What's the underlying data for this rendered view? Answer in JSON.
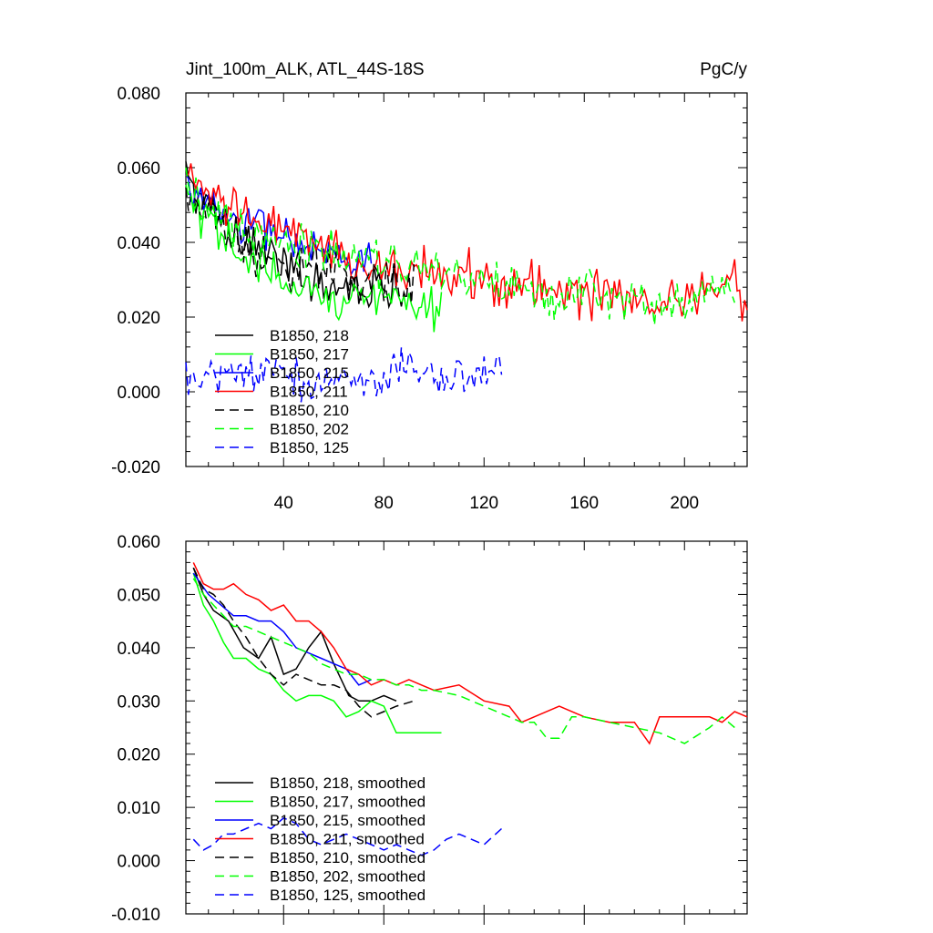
{
  "chart_data": [
    {
      "type": "line",
      "title": "Jint_100m_ALK, ATL_44S-18S",
      "units": "PgC/y",
      "xlabel": "",
      "ylabel": "",
      "xlim": [
        1,
        225
      ],
      "ylim": [
        -0.02,
        0.08
      ],
      "xticks": [
        "40",
        "80",
        "120",
        "160",
        "200"
      ],
      "yticks": [
        "-0.020",
        "0.000",
        "0.020",
        "0.040",
        "0.060",
        "0.080"
      ],
      "grid": false,
      "legend_position": "lower-left",
      "series": [
        {
          "name": "B1850, 218",
          "color": "#000000",
          "dash": "solid",
          "x_end": 85,
          "x": [
            1,
            10,
            20,
            30,
            40,
            50,
            60,
            70,
            80,
            85
          ],
          "values": [
            0.057,
            0.049,
            0.044,
            0.039,
            0.033,
            0.031,
            0.03,
            0.028,
            0.029,
            0.03
          ]
        },
        {
          "name": "B1850, 217",
          "color": "#00ff00",
          "dash": "solid",
          "x_end": 103,
          "x": [
            1,
            10,
            20,
            30,
            40,
            50,
            60,
            70,
            80,
            90,
            103
          ],
          "values": [
            0.052,
            0.044,
            0.038,
            0.034,
            0.029,
            0.027,
            0.026,
            0.026,
            0.024,
            0.022,
            0.023
          ]
        },
        {
          "name": "B1850, 215",
          "color": "#0000ff",
          "dash": "solid",
          "x_end": 75,
          "x": [
            1,
            10,
            20,
            30,
            40,
            50,
            60,
            70,
            75
          ],
          "values": [
            0.056,
            0.05,
            0.046,
            0.044,
            0.042,
            0.039,
            0.036,
            0.033,
            0.034
          ]
        },
        {
          "name": "B1850, 211",
          "color": "#ff0000",
          "dash": "solid",
          "x_end": 225,
          "x": [
            1,
            10,
            20,
            30,
            40,
            50,
            60,
            70,
            80,
            90,
            100,
            110,
            120,
            130,
            140,
            150,
            160,
            170,
            180,
            190,
            200,
            210,
            220,
            225
          ],
          "values": [
            0.057,
            0.051,
            0.05,
            0.047,
            0.043,
            0.04,
            0.037,
            0.034,
            0.033,
            0.033,
            0.032,
            0.033,
            0.03,
            0.028,
            0.029,
            0.027,
            0.026,
            0.026,
            0.022,
            0.025,
            0.026,
            0.027,
            0.03,
            0.021
          ]
        },
        {
          "name": "B1850, 210",
          "color": "#000000",
          "dash": "dashed",
          "x_end": 92,
          "x": [
            1,
            10,
            20,
            30,
            40,
            50,
            60,
            70,
            80,
            92
          ],
          "values": [
            0.055,
            0.048,
            0.041,
            0.037,
            0.034,
            0.034,
            0.033,
            0.029,
            0.029,
            0.029
          ]
        },
        {
          "name": "B1850, 202",
          "color": "#00ff00",
          "dash": "dashed",
          "x_end": 220,
          "x": [
            1,
            10,
            20,
            30,
            40,
            50,
            60,
            70,
            80,
            90,
            100,
            110,
            120,
            130,
            140,
            150,
            160,
            170,
            180,
            190,
            200,
            210,
            220
          ],
          "values": [
            0.054,
            0.047,
            0.044,
            0.041,
            0.04,
            0.038,
            0.037,
            0.035,
            0.034,
            0.033,
            0.033,
            0.031,
            0.031,
            0.027,
            0.027,
            0.023,
            0.027,
            0.025,
            0.026,
            0.023,
            0.024,
            0.027,
            0.025
          ]
        },
        {
          "name": "B1850, 125",
          "color": "#0000ff",
          "dash": "dashed",
          "x_end": 127,
          "x": [
            1,
            10,
            20,
            30,
            40,
            50,
            60,
            70,
            80,
            90,
            100,
            110,
            120,
            127
          ],
          "values": [
            0.004,
            0.003,
            0.006,
            0.005,
            0.005,
            0.002,
            0.003,
            0.004,
            0.004,
            0.007,
            0.004,
            0.004,
            0.005,
            0.006
          ]
        }
      ]
    },
    {
      "type": "line",
      "title": "",
      "xlabel": "",
      "ylabel": "",
      "xlim": [
        1,
        225
      ],
      "ylim": [
        -0.01,
        0.06
      ],
      "xticks": [],
      "yticks": [
        "-0.010",
        "0.000",
        "0.010",
        "0.020",
        "0.030",
        "0.040",
        "0.050",
        "0.060"
      ],
      "grid": false,
      "legend_position": "lower-left",
      "series": [
        {
          "name": "B1850, 218, smoothed",
          "color": "#000000",
          "dash": "solid",
          "x": [
            4,
            8,
            12,
            18,
            24,
            30,
            35,
            40,
            45,
            50,
            55,
            60,
            66,
            70,
            75,
            80,
            85
          ],
          "values": [
            0.055,
            0.05,
            0.047,
            0.045,
            0.04,
            0.038,
            0.042,
            0.035,
            0.036,
            0.04,
            0.043,
            0.037,
            0.031,
            0.03,
            0.03,
            0.031,
            0.03
          ]
        },
        {
          "name": "B1850, 217, smoothed",
          "color": "#00ff00",
          "dash": "solid",
          "x": [
            4,
            8,
            12,
            16,
            20,
            25,
            30,
            35,
            40,
            45,
            50,
            55,
            60,
            65,
            70,
            75,
            80,
            85,
            90,
            95,
            100,
            103
          ],
          "values": [
            0.054,
            0.048,
            0.045,
            0.041,
            0.038,
            0.038,
            0.036,
            0.035,
            0.032,
            0.03,
            0.031,
            0.031,
            0.03,
            0.027,
            0.028,
            0.03,
            0.029,
            0.024,
            0.024,
            0.024,
            0.024,
            0.024
          ]
        },
        {
          "name": "B1850, 215, smoothed",
          "color": "#0000ff",
          "dash": "solid",
          "x": [
            4,
            10,
            15,
            20,
            25,
            30,
            35,
            40,
            45,
            50,
            55,
            60,
            65,
            70,
            75
          ],
          "values": [
            0.054,
            0.05,
            0.048,
            0.046,
            0.046,
            0.045,
            0.045,
            0.043,
            0.04,
            0.039,
            0.038,
            0.037,
            0.036,
            0.033,
            0.034
          ]
        },
        {
          "name": "B1850, 211, smoothed",
          "color": "#ff0000",
          "dash": "solid",
          "x": [
            4,
            8,
            12,
            16,
            20,
            25,
            30,
            35,
            40,
            45,
            50,
            55,
            60,
            65,
            70,
            75,
            80,
            85,
            90,
            95,
            100,
            110,
            120,
            130,
            135,
            140,
            150,
            160,
            170,
            175,
            180,
            186,
            190,
            200,
            210,
            215,
            220,
            225
          ],
          "values": [
            0.056,
            0.052,
            0.051,
            0.051,
            0.052,
            0.05,
            0.049,
            0.047,
            0.048,
            0.045,
            0.045,
            0.043,
            0.04,
            0.036,
            0.035,
            0.033,
            0.034,
            0.033,
            0.034,
            0.033,
            0.032,
            0.033,
            0.03,
            0.029,
            0.026,
            0.027,
            0.029,
            0.027,
            0.026,
            0.026,
            0.026,
            0.022,
            0.027,
            0.027,
            0.027,
            0.026,
            0.028,
            0.027
          ]
        },
        {
          "name": "B1850, 210, smoothed",
          "color": "#000000",
          "dash": "dashed",
          "x": [
            4,
            8,
            12,
            16,
            20,
            25,
            30,
            35,
            40,
            45,
            50,
            55,
            60,
            65,
            70,
            75,
            80,
            85,
            92
          ],
          "values": [
            0.055,
            0.051,
            0.05,
            0.048,
            0.045,
            0.042,
            0.038,
            0.035,
            0.033,
            0.035,
            0.034,
            0.033,
            0.033,
            0.032,
            0.029,
            0.027,
            0.028,
            0.029,
            0.03
          ]
        },
        {
          "name": "B1850, 202, smoothed",
          "color": "#00ff00",
          "dash": "dashed",
          "x": [
            4,
            8,
            12,
            16,
            20,
            25,
            30,
            35,
            40,
            45,
            50,
            55,
            60,
            65,
            70,
            75,
            80,
            85,
            90,
            95,
            100,
            110,
            120,
            130,
            135,
            140,
            145,
            150,
            155,
            160,
            170,
            180,
            190,
            200,
            210,
            215,
            220
          ],
          "values": [
            0.053,
            0.05,
            0.048,
            0.046,
            0.044,
            0.044,
            0.043,
            0.042,
            0.041,
            0.04,
            0.039,
            0.037,
            0.036,
            0.035,
            0.035,
            0.034,
            0.034,
            0.033,
            0.033,
            0.032,
            0.032,
            0.031,
            0.029,
            0.027,
            0.026,
            0.026,
            0.023,
            0.023,
            0.027,
            0.027,
            0.026,
            0.025,
            0.024,
            0.022,
            0.025,
            0.027,
            0.025
          ]
        },
        {
          "name": "B1850, 125, smoothed",
          "color": "#0000ff",
          "dash": "dashed",
          "x": [
            4,
            8,
            12,
            16,
            20,
            25,
            30,
            35,
            40,
            45,
            50,
            55,
            60,
            65,
            70,
            75,
            80,
            85,
            90,
            95,
            100,
            105,
            110,
            115,
            120,
            127
          ],
          "values": [
            0.004,
            0.002,
            0.003,
            0.005,
            0.005,
            0.006,
            0.007,
            0.006,
            0.008,
            0.007,
            0.004,
            0.003,
            0.004,
            0.005,
            0.004,
            0.003,
            0.002,
            0.003,
            0.002,
            0.001,
            0.002,
            0.004,
            0.005,
            0.004,
            0.003,
            0.006
          ]
        }
      ]
    }
  ]
}
